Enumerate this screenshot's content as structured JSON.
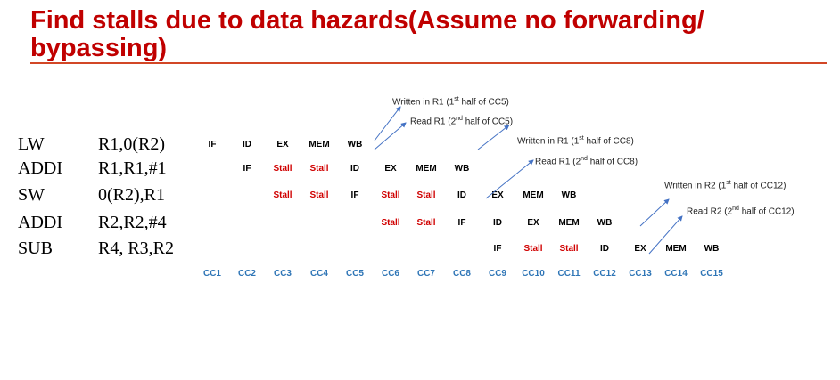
{
  "title": "Find stalls due to data hazards(Assume no forwarding/ bypassing)",
  "instructions": [
    {
      "op": "LW",
      "args": "R1,0(R2)"
    },
    {
      "op": "ADDI",
      "args": "R1,R1,#1"
    },
    {
      "op": "SW",
      "args": "0(R2),R1"
    },
    {
      "op": "ADDI",
      "args": "R2,R2,#4"
    },
    {
      "op": "SUB",
      "args": "R4, R3,R2"
    }
  ],
  "pipeline": [
    [
      "IF",
      "ID",
      "EX",
      "MEM",
      "WB"
    ],
    [
      "",
      "IF",
      "Stall",
      "Stall",
      "ID",
      "EX",
      "MEM",
      "WB"
    ],
    [
      "",
      "",
      "Stall",
      "Stall",
      "IF",
      "Stall",
      "Stall",
      "ID",
      "EX",
      "MEM",
      "WB"
    ],
    [
      "",
      "",
      "",
      "",
      "",
      "Stall",
      "Stall",
      "IF",
      "ID",
      "EX",
      "MEM",
      "WB"
    ],
    [
      "",
      "",
      "",
      "",
      "",
      "",
      "",
      "",
      "IF",
      "Stall",
      "Stall",
      "ID",
      "EX",
      "MEM",
      "WB"
    ]
  ],
  "cycles": [
    "CC1",
    "CC2",
    "CC3",
    "CC4",
    "CC5",
    "CC6",
    "CC7",
    "CC8",
    "CC9",
    "CC10",
    "CC11",
    "CC12",
    "CC13",
    "CC14",
    "CC15"
  ],
  "annotations": [
    {
      "pre": "Written in R1 (1",
      "sup": "st",
      "post": " half of CC5)"
    },
    {
      "pre": "Read R1 (2",
      "sup": "nd",
      "post": " half of CC5)"
    },
    {
      "pre": "Written in R1 (1",
      "sup": "st",
      "post": " half of CC8)"
    },
    {
      "pre": "Read R1 (2",
      "sup": "nd",
      "post": " half of CC8)"
    },
    {
      "pre": "Written in R2 (1",
      "sup": "st",
      "post": " half of CC12)"
    },
    {
      "pre": "Read R2 (2",
      "sup": "nd",
      "post": " half of CC12)"
    }
  ],
  "colors": {
    "title": "#c00000",
    "stall": "#d00000",
    "cycle": "#2e75b6",
    "arrow": "#4472c4",
    "rule": "#d24726"
  }
}
